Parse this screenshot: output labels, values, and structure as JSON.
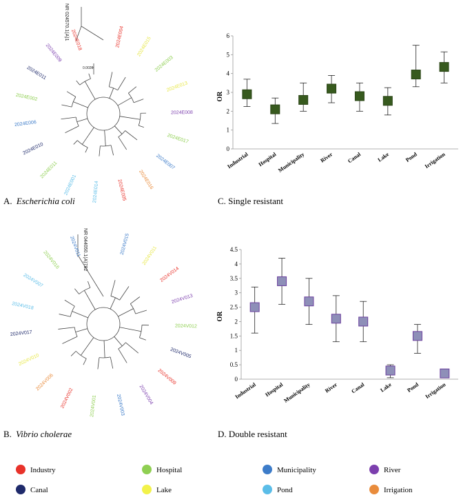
{
  "figure": {
    "panel_a": {
      "caption_prefix": "A.",
      "caption_species": "Escherichia coli",
      "outgroup": "NR 024570.1(A)1",
      "scale_label": "0.0020",
      "leaves": [
        {
          "label": "2024E004",
          "color": "#e8322a"
        },
        {
          "label": "2024E015",
          "color": "#e8e84a"
        },
        {
          "label": "2024E003",
          "color": "#8fcf52"
        },
        {
          "label": "2024E013",
          "color": "#e8e84a"
        },
        {
          "label": "2024E008",
          "color": "#7c3fae"
        },
        {
          "label": "2024E017",
          "color": "#8fcf52"
        },
        {
          "label": "2024E007",
          "color": "#3d7cc9"
        },
        {
          "label": "2024E016",
          "color": "#e98c3c"
        },
        {
          "label": "2024E005",
          "color": "#e8322a"
        },
        {
          "label": "2024E014",
          "color": "#5bbde8"
        },
        {
          "label": "2024E001",
          "color": "#5bbde8"
        },
        {
          "label": "2024E011",
          "color": "#8fcf52"
        },
        {
          "label": "2024E010",
          "color": "#1f2a6b"
        },
        {
          "label": "2024E006",
          "color": "#3d7cc9"
        },
        {
          "label": "2024E002",
          "color": "#8fcf52"
        },
        {
          "label": "2024E011",
          "color": "#1f2a6b"
        },
        {
          "label": "2024E009",
          "color": "#7c3fae"
        },
        {
          "label": "2024E018",
          "color": "#e8322a"
        }
      ]
    },
    "panel_b": {
      "caption_prefix": "B.",
      "caption_species": "Vibrio cholerae",
      "outgroup": "NR 044050.1(A)782",
      "leaves": [
        {
          "label": "2024V015",
          "color": "#3d7cc9"
        },
        {
          "label": "2024V011",
          "color": "#e8e84a"
        },
        {
          "label": "2024V014",
          "color": "#e8322a"
        },
        {
          "label": "2024V013",
          "color": "#7c3fae"
        },
        {
          "label": "2024V012",
          "color": "#8fcf52"
        },
        {
          "label": "2024V005",
          "color": "#1f2a6b"
        },
        {
          "label": "2024V009",
          "color": "#e8322a"
        },
        {
          "label": "2024V004",
          "color": "#7c3fae"
        },
        {
          "label": "2024V003",
          "color": "#3d7cc9"
        },
        {
          "label": "2024V001",
          "color": "#8fcf52"
        },
        {
          "label": "2024V002",
          "color": "#e8322a"
        },
        {
          "label": "2024V006",
          "color": "#e98c3c"
        },
        {
          "label": "2024V010",
          "color": "#e8e84a"
        },
        {
          "label": "2024V017",
          "color": "#1f2a6b"
        },
        {
          "label": "2024V018",
          "color": "#5bbde8"
        },
        {
          "label": "2024V007",
          "color": "#5bbde8"
        },
        {
          "label": "2024V016",
          "color": "#8fcf52"
        },
        {
          "label": "2024V011",
          "color": "#3d7cc9"
        }
      ]
    },
    "panel_c": {
      "caption": "C. Single resistant"
    },
    "panel_d": {
      "caption": "D. Double resistant"
    },
    "legend": [
      {
        "label": "Industry",
        "color": "#e8322a"
      },
      {
        "label": "Hospital",
        "color": "#8fcf52"
      },
      {
        "label": "Municipality",
        "color": "#3d7cc9"
      },
      {
        "label": "River",
        "color": "#7c3fae"
      },
      {
        "label": "Canal",
        "color": "#1f2a6b"
      },
      {
        "label": "Lake",
        "color": "#f2f24a"
      },
      {
        "label": "Pond",
        "color": "#5bbde8"
      },
      {
        "label": "Irrigation",
        "color": "#e98c3c"
      }
    ]
  },
  "chart_data": [
    {
      "type": "scatter",
      "title": "C. Single resistant",
      "xlabel": "",
      "ylabel": "OR",
      "ylim": [
        0,
        6
      ],
      "yticks": [
        0,
        1,
        2,
        3,
        4,
        5,
        6
      ],
      "categories": [
        "Industrial",
        "Hospital",
        "Municipality",
        "River",
        "Canal",
        "Lake",
        "Pond",
        "Irrigation"
      ],
      "values": [
        2.9,
        2.1,
        2.6,
        3.2,
        2.8,
        2.55,
        3.95,
        4.35
      ],
      "lower": [
        2.25,
        1.35,
        2.0,
        2.45,
        2.0,
        1.8,
        3.3,
        3.5
      ],
      "upper": [
        3.7,
        2.7,
        3.5,
        3.9,
        3.5,
        3.25,
        5.5,
        5.15
      ],
      "marker_color": "#375a1e",
      "marker_edge": "#2a4416",
      "grid": false
    },
    {
      "type": "scatter",
      "title": "D. Double resistant",
      "xlabel": "",
      "ylabel": "OR",
      "ylim": [
        0,
        4.5
      ],
      "yticks": [
        0,
        0.5,
        1,
        1.5,
        2,
        2.5,
        3,
        3.5,
        4,
        4.5
      ],
      "categories": [
        "Industrial",
        "Hospital",
        "Municipality",
        "River",
        "Canal",
        "Lake",
        "Pond",
        "Irrigation"
      ],
      "values": [
        2.5,
        3.4,
        2.7,
        2.1,
        2.0,
        0.3,
        1.5,
        0.2
      ],
      "lower": [
        1.6,
        2.6,
        1.9,
        1.3,
        1.3,
        0.05,
        0.9,
        0.05
      ],
      "upper": [
        3.2,
        4.2,
        3.5,
        2.9,
        2.7,
        0.5,
        1.9,
        0.3
      ],
      "marker_color": "#8e8fb8",
      "marker_edge": "#6b3f9e",
      "grid": false
    }
  ]
}
